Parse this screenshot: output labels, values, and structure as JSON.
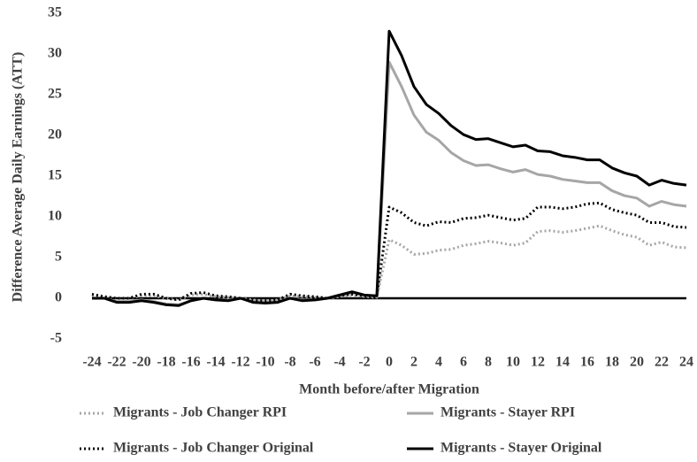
{
  "chart_data": {
    "type": "line",
    "ylabel": "Difference Average Daily Earnings (ATT)",
    "xlabel": "Month before/after Migration",
    "x": [
      -24,
      -23,
      -22,
      -21,
      -20,
      -19,
      -18,
      -17,
      -16,
      -15,
      -14,
      -13,
      -12,
      -11,
      -10,
      -9,
      -8,
      -7,
      -6,
      -5,
      -4,
      -3,
      -2,
      -1,
      0,
      1,
      2,
      3,
      4,
      5,
      6,
      7,
      8,
      9,
      10,
      11,
      12,
      13,
      14,
      15,
      16,
      17,
      18,
      19,
      20,
      21,
      22,
      23,
      24
    ],
    "xlim": [
      -24,
      24
    ],
    "xticks": [
      -24,
      -22,
      -20,
      -18,
      -16,
      -14,
      -12,
      -10,
      -8,
      -6,
      -4,
      -2,
      0,
      2,
      4,
      6,
      8,
      10,
      12,
      14,
      16,
      18,
      20,
      22,
      24
    ],
    "ylim": [
      -5,
      35
    ],
    "yticks": [
      -5,
      0,
      5,
      10,
      15,
      20,
      25,
      30,
      35
    ],
    "series": [
      {
        "name": "Migrants - Job Changer RPI",
        "color": "#a6a6a6",
        "dash": "dotted",
        "values": [
          0.3,
          0.1,
          0,
          0,
          0.3,
          0.3,
          0,
          -0.2,
          0.4,
          0.5,
          0.2,
          0.1,
          0,
          -0.2,
          -0.3,
          -0.2,
          0.3,
          0.2,
          0.1,
          0,
          0.2,
          0.4,
          0.2,
          0.1,
          7.2,
          6.5,
          5.4,
          5.5,
          5.9,
          6.0,
          6.5,
          6.7,
          7.0,
          6.8,
          6.5,
          6.8,
          8.2,
          8.3,
          8.1,
          8.3,
          8.6,
          8.9,
          8.3,
          7.8,
          7.5,
          6.5,
          6.9,
          6.3,
          6.2
        ]
      },
      {
        "name": "Migrants - Stayer RPI",
        "color": "#a6a6a6",
        "dash": "solid",
        "values": [
          0,
          0,
          -0.4,
          -0.4,
          -0.2,
          -0.4,
          -0.7,
          -0.8,
          -0.3,
          0,
          -0.2,
          -0.2,
          0,
          -0.4,
          -0.5,
          -0.4,
          0,
          -0.2,
          -0.2,
          0,
          0.3,
          0.7,
          0.3,
          0.2,
          29.0,
          26.0,
          22.5,
          20.4,
          19.4,
          17.9,
          16.9,
          16.3,
          16.4,
          15.9,
          15.5,
          15.8,
          15.2,
          15.0,
          14.6,
          14.4,
          14.2,
          14.2,
          13.2,
          12.6,
          12.3,
          11.3,
          11.9,
          11.5,
          11.3
        ]
      },
      {
        "name": "Migrants - Job Changer Original",
        "color": "#000000",
        "dash": "dotted",
        "values": [
          0.5,
          0.2,
          0,
          0,
          0.5,
          0.5,
          0,
          -0.2,
          0.6,
          0.7,
          0.3,
          0.2,
          0,
          -0.3,
          -0.3,
          -0.2,
          0.5,
          0.3,
          0.2,
          0,
          0.3,
          0.5,
          0.3,
          0.2,
          11.2,
          10.5,
          9.3,
          8.9,
          9.4,
          9.3,
          9.8,
          9.9,
          10.2,
          9.9,
          9.6,
          9.8,
          11.2,
          11.2,
          11.0,
          11.2,
          11.6,
          11.7,
          10.9,
          10.5,
          10.2,
          9.3,
          9.3,
          8.8,
          8.7
        ]
      },
      {
        "name": "Migrants - Stayer Original",
        "color": "#000000",
        "dash": "solid",
        "values": [
          0,
          0,
          -0.5,
          -0.5,
          -0.3,
          -0.5,
          -0.8,
          -0.9,
          -0.3,
          0,
          -0.2,
          -0.3,
          0,
          -0.5,
          -0.6,
          -0.5,
          0,
          -0.3,
          -0.2,
          0,
          0.4,
          0.8,
          0.4,
          0.3,
          32.8,
          29.8,
          26.0,
          23.8,
          22.7,
          21.2,
          20.1,
          19.5,
          19.6,
          19.1,
          18.6,
          18.8,
          18.1,
          18.0,
          17.5,
          17.3,
          17.0,
          17.0,
          16.0,
          15.4,
          15.0,
          13.9,
          14.5,
          14.1,
          13.9
        ]
      }
    ]
  }
}
